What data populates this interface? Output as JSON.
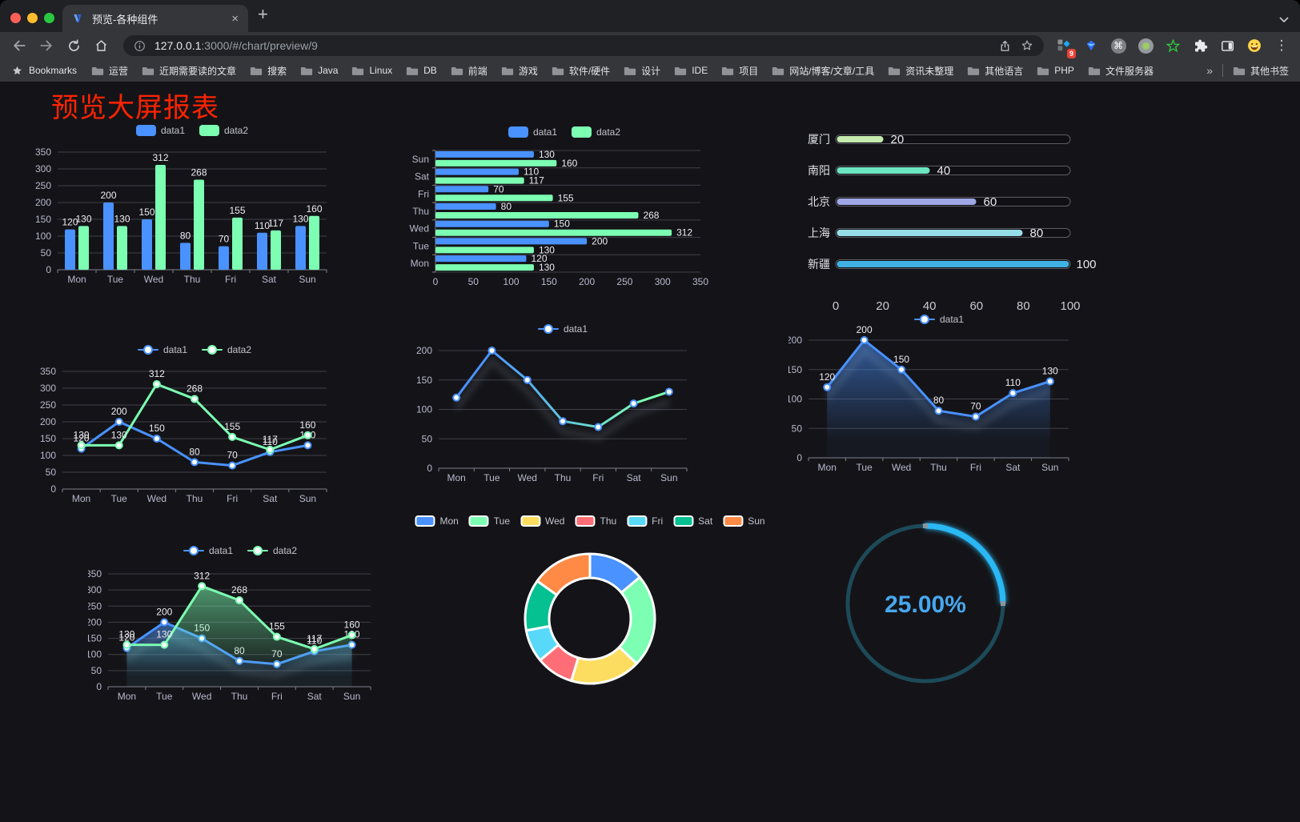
{
  "browser": {
    "tab_title": "预览-各种组件",
    "url_host": "127.0.0.1",
    "url_path": ":3000/#/chart/preview/9",
    "extension_badge": "9",
    "bookmarks_label": "Bookmarks",
    "bookmarks": [
      "运营",
      "近期需要读的文章",
      "搜索",
      "Java",
      "Linux",
      "DB",
      "前端",
      "游戏",
      "软件/硬件",
      "设计",
      "IDE",
      "项目",
      "网站/博客/文章/工具",
      "资讯未整理",
      "其他语言",
      "PHP",
      "文件服务器"
    ],
    "bookmarks_overflow": "»",
    "other_bookmarks": "其他书签"
  },
  "page": {
    "title": "预览大屏报表"
  },
  "chart_data": [
    {
      "id": "bar-vertical",
      "type": "bar",
      "categories": [
        "Mon",
        "Tue",
        "Wed",
        "Thu",
        "Fri",
        "Sat",
        "Sun"
      ],
      "legend": [
        "data1",
        "data2"
      ],
      "legend_icon": "rect",
      "series": [
        {
          "name": "data1",
          "color": "#4992ff",
          "values": [
            120,
            200,
            150,
            80,
            70,
            110,
            130
          ]
        },
        {
          "name": "data2",
          "color": "#7cffb2",
          "values": [
            130,
            130,
            312,
            268,
            155,
            117,
            160
          ]
        }
      ],
      "ylim": [
        0,
        350
      ],
      "ytick": 50,
      "point_labels": true
    },
    {
      "id": "bar-horizontal",
      "type": "hbar",
      "categories": [
        "Mon",
        "Tue",
        "Wed",
        "Thu",
        "Fri",
        "Sat",
        "Sun"
      ],
      "legend": [
        "data1",
        "data2"
      ],
      "legend_icon": "rect",
      "series": [
        {
          "name": "data1",
          "color": "#4992ff",
          "values": [
            120,
            200,
            150,
            80,
            70,
            110,
            130
          ]
        },
        {
          "name": "data2",
          "color": "#7cffb2",
          "values": [
            130,
            130,
            312,
            268,
            155,
            117,
            160
          ]
        }
      ],
      "xlim": [
        0,
        350
      ],
      "xtick": 50,
      "point_labels": true
    },
    {
      "id": "progress-bars",
      "type": "progress_bar",
      "max": 100,
      "axis_ticks": [
        0,
        20,
        40,
        60,
        80,
        100
      ],
      "items": [
        {
          "label": "厦门",
          "value": 20,
          "color": "#c4ebad"
        },
        {
          "label": "南阳",
          "value": 40,
          "color": "#6be6c1"
        },
        {
          "label": "北京",
          "value": 60,
          "color": "#a0a7e6"
        },
        {
          "label": "上海",
          "value": 80,
          "color": "#96dee8"
        },
        {
          "label": "新疆",
          "value": 100,
          "color": "#3fb1e3"
        }
      ]
    },
    {
      "id": "line-basic",
      "type": "line",
      "categories": [
        "Mon",
        "Tue",
        "Wed",
        "Thu",
        "Fri",
        "Sat",
        "Sun"
      ],
      "legend": [
        "data1",
        "data2"
      ],
      "legend_icon": "line",
      "series": [
        {
          "name": "data1",
          "color": "#4992ff",
          "values": [
            120,
            200,
            150,
            80,
            70,
            110,
            130
          ]
        },
        {
          "name": "data2",
          "color": "#7cffb2",
          "values": [
            130,
            130,
            312,
            268,
            155,
            117,
            160
          ]
        }
      ],
      "ylim": [
        0,
        350
      ],
      "ytick": 50,
      "point_labels": true
    },
    {
      "id": "line-gradient",
      "type": "line",
      "categories": [
        "Mon",
        "Tue",
        "Wed",
        "Thu",
        "Fri",
        "Sat",
        "Sun"
      ],
      "legend": [
        "data1"
      ],
      "legend_icon": "line",
      "series": [
        {
          "name": "data1",
          "color": "#4992ff",
          "line_gradient": [
            "#4992ff",
            "#7cffb2"
          ],
          "shadow": true,
          "values": [
            120,
            200,
            150,
            80,
            70,
            110,
            130
          ]
        }
      ],
      "ylim": [
        0,
        200
      ],
      "ytick": 50,
      "point_labels": false
    },
    {
      "id": "line-area",
      "type": "line",
      "categories": [
        "Mon",
        "Tue",
        "Wed",
        "Thu",
        "Fri",
        "Sat",
        "Sun"
      ],
      "legend": [
        "data1"
      ],
      "legend_icon": "line",
      "series": [
        {
          "name": "data1",
          "color": "#4992ff",
          "area": true,
          "shadow": true,
          "values": [
            120,
            200,
            150,
            80,
            70,
            110,
            130
          ]
        }
      ],
      "ylim": [
        0,
        200
      ],
      "ytick": 50,
      "point_labels": true
    },
    {
      "id": "line-area-multi",
      "type": "line",
      "categories": [
        "Mon",
        "Tue",
        "Wed",
        "Thu",
        "Fri",
        "Sat",
        "Sun"
      ],
      "legend": [
        "data1",
        "data2"
      ],
      "legend_icon": "line",
      "series": [
        {
          "name": "data1",
          "color": "#4992ff",
          "area": true,
          "shadow": true,
          "values": [
            120,
            200,
            150,
            80,
            70,
            110,
            130
          ]
        },
        {
          "name": "data2",
          "color": "#7cffb2",
          "area": true,
          "values": [
            130,
            130,
            312,
            268,
            155,
            117,
            160
          ]
        }
      ],
      "ylim": [
        0,
        350
      ],
      "ytick": 50,
      "point_labels": true
    },
    {
      "id": "donut",
      "type": "pie",
      "legend": [
        "Mon",
        "Tue",
        "Wed",
        "Thu",
        "Fri",
        "Sat",
        "Sun"
      ],
      "legend_icon": "rect-border",
      "items": [
        {
          "label": "Mon",
          "value": 120,
          "color": "#4992ff"
        },
        {
          "label": "Tue",
          "value": 200,
          "color": "#7cffb2"
        },
        {
          "label": "Wed",
          "value": 150,
          "color": "#fddd60"
        },
        {
          "label": "Thu",
          "value": 80,
          "color": "#ff6e76"
        },
        {
          "label": "Fri",
          "value": 70,
          "color": "#58d9f9"
        },
        {
          "label": "Sat",
          "value": 110,
          "color": "#05c091"
        },
        {
          "label": "Sun",
          "value": 130,
          "color": "#ff8a45"
        }
      ]
    },
    {
      "id": "gauge",
      "type": "gauge",
      "value_percent": 25,
      "label": "25.00%",
      "color": "#2ab8f5",
      "track_color": "#1d4a58",
      "text_color": "#47a8f0"
    }
  ]
}
